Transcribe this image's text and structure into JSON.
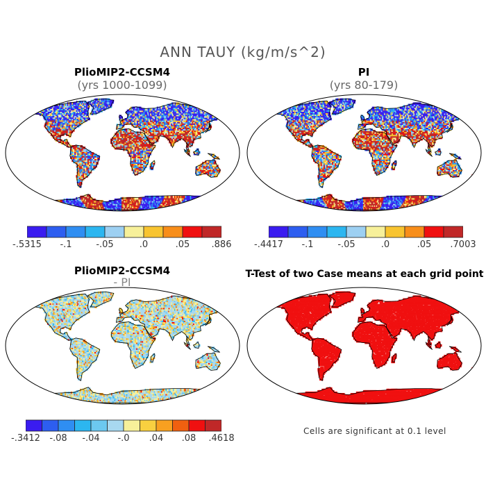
{
  "title": "ANN TAUY (kg/m/s^2)",
  "panels": [
    {
      "title": "PlioMIP2-CCSM4",
      "subtitle": "(yrs 1000-1099)"
    },
    {
      "title": "PI",
      "subtitle": "(yrs 80-179)"
    },
    {
      "title": "PlioMIP2-CCSM4",
      "subtitle": "- PI"
    },
    {
      "title": "T-Test of two Case means at each grid point",
      "subtitle": ""
    }
  ],
  "colorbars": [
    {
      "ticks": [
        "-.5315",
        "-.1",
        "-.05",
        ".0",
        ".05",
        ".886"
      ],
      "colors": [
        "#3a1cf0",
        "#2d5ef0",
        "#2f8ef2",
        "#2cb6f0",
        "#9dd0f2",
        "#f7f09a",
        "#f8c430",
        "#f88e1a",
        "#f01010",
        "#c02828"
      ]
    },
    {
      "ticks": [
        "-.4417",
        "-.1",
        "-.05",
        ".0",
        ".05",
        ".7003"
      ],
      "colors": [
        "#3a1cf0",
        "#2d5ef0",
        "#2f8ef2",
        "#2cb6f0",
        "#9dd0f2",
        "#f7f09a",
        "#f8c430",
        "#f88e1a",
        "#f01010",
        "#c02828"
      ]
    },
    {
      "ticks": [
        "-.3412",
        "-.08",
        "-.04",
        "-.0",
        ".04",
        ".08",
        ".4618"
      ],
      "colors": [
        "#3a1cf0",
        "#2d5ef0",
        "#2f8ef2",
        "#2cb6f0",
        "#6cc8f0",
        "#a8d8f0",
        "#f7f09a",
        "#f8d040",
        "#f8a020",
        "#f06010",
        "#f01010",
        "#c02828"
      ]
    }
  ],
  "note": "Cells are significant at 0.1 level",
  "map_colors": {
    "ocean": "#ffffff",
    "outline": "#000000",
    "significant": "#f01010"
  }
}
